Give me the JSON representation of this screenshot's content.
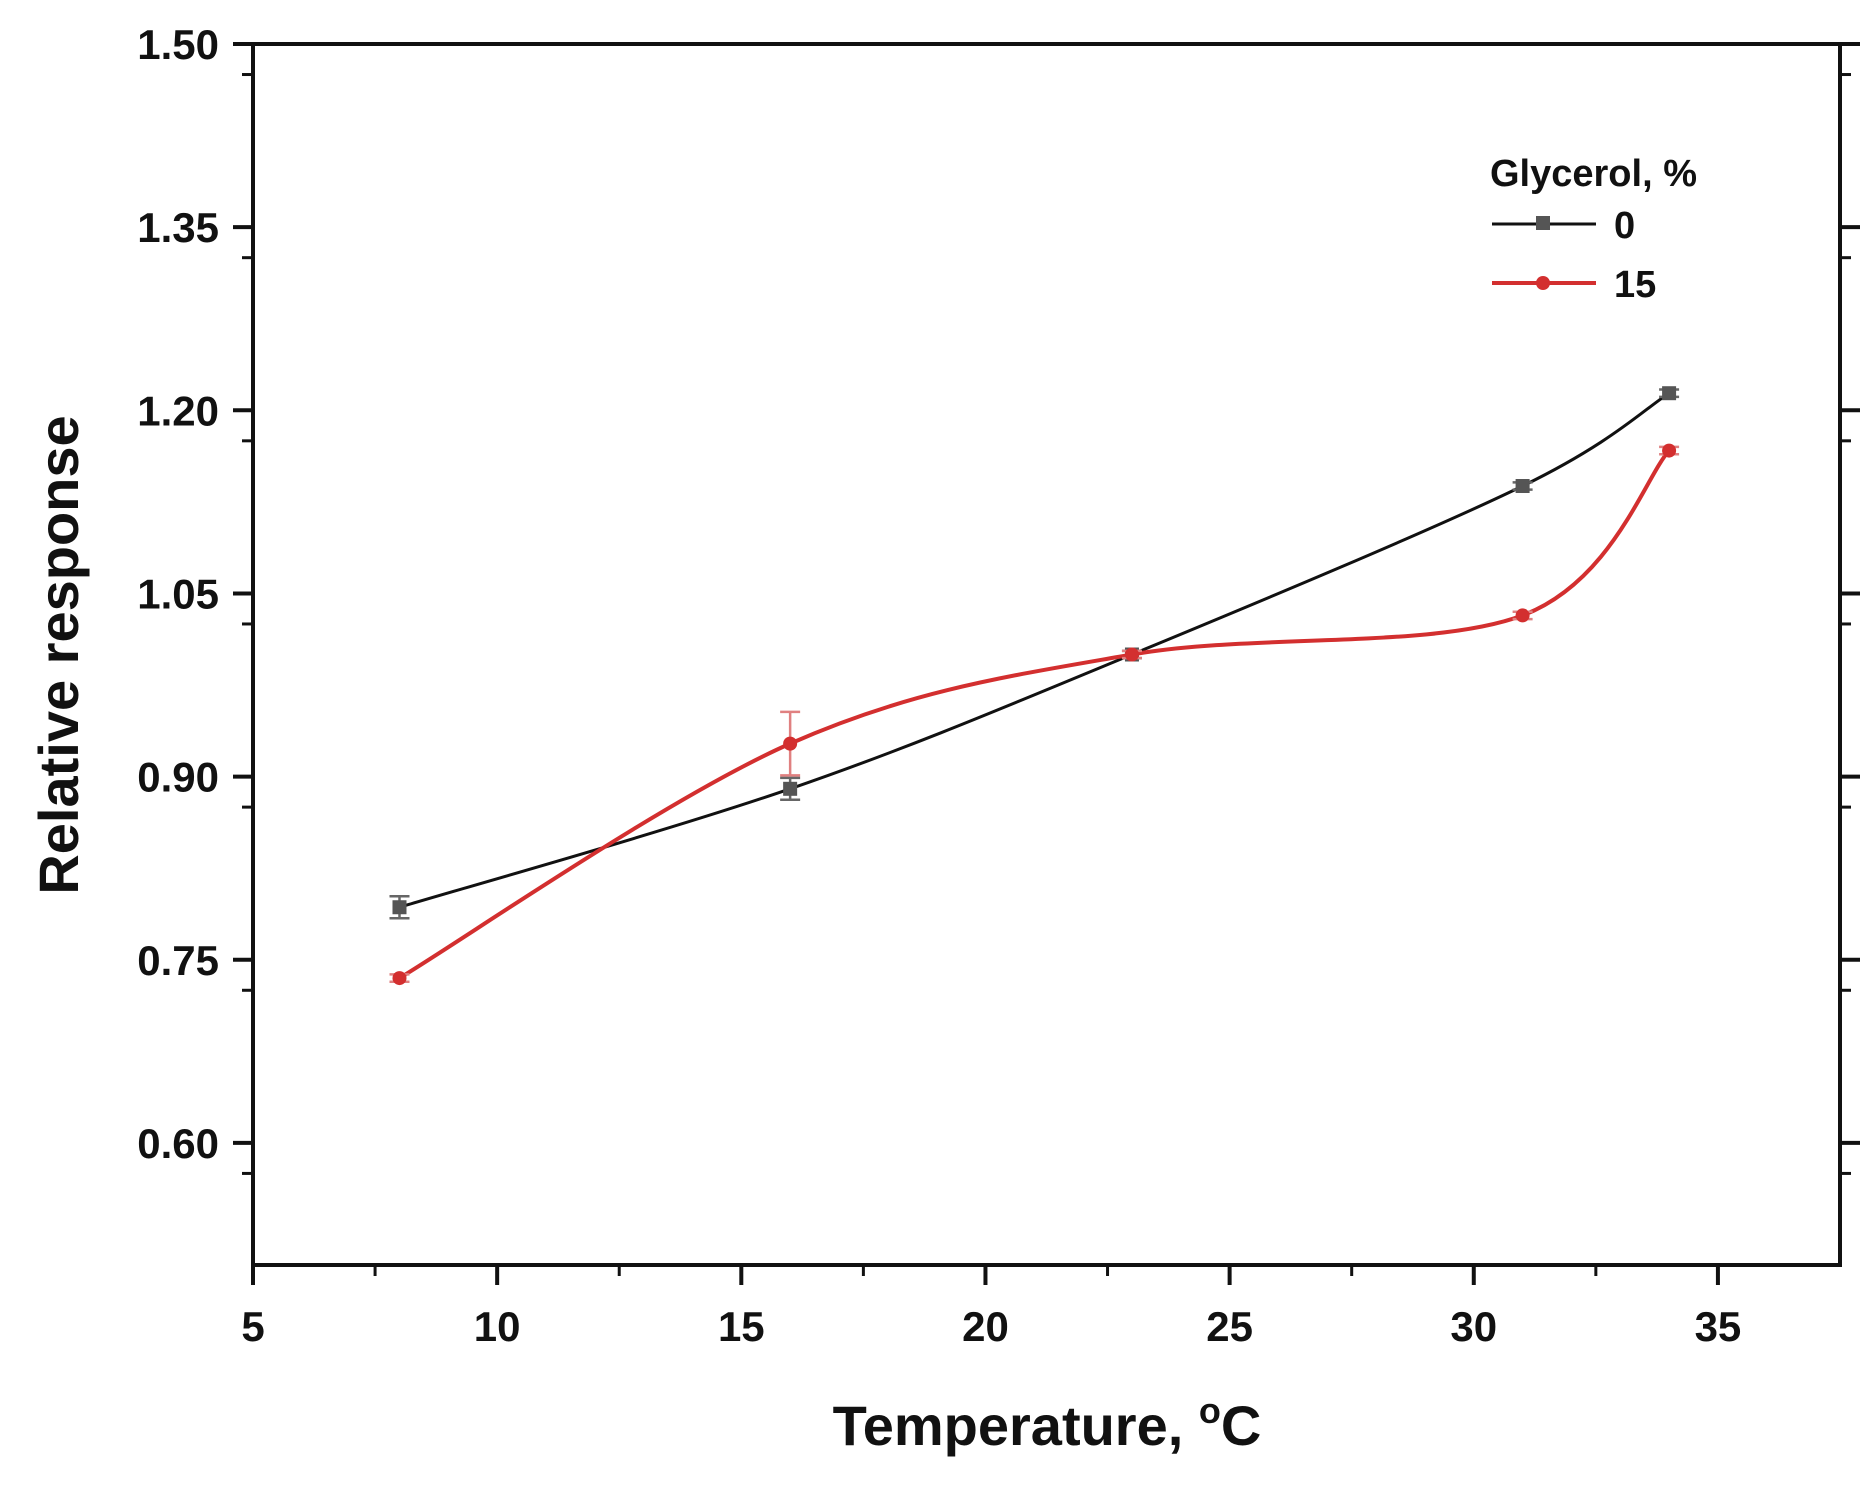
{
  "chart_data": {
    "type": "line",
    "title": "",
    "xlabel": "Temperature, ",
    "xlabel_unit_sup": "o",
    "xlabel_unit": "C",
    "ylabel": "Relative response",
    "xlim": [
      5,
      37.5
    ],
    "ylim": [
      0.5,
      1.5
    ],
    "xticks": [
      5,
      10,
      15,
      20,
      25,
      30,
      35
    ],
    "yticks": [
      0.6,
      0.75,
      0.9,
      1.05,
      1.2,
      1.35,
      1.5
    ],
    "ytick_labels": [
      "0.60",
      "0.75",
      "0.90",
      "1.05",
      "1.20",
      "1.35",
      "1.50"
    ],
    "xtick_labels": [
      "5",
      "10",
      "15",
      "20",
      "25",
      "30",
      "35"
    ],
    "legend": {
      "title": "Glycerol, %",
      "placement": "top-right"
    },
    "series": [
      {
        "name": "0",
        "color": "#111111",
        "marker": "square",
        "marker_color": "#555555",
        "x": [
          8,
          16,
          23,
          31,
          34
        ],
        "y": [
          0.793,
          0.89,
          1.0,
          1.138,
          1.214
        ],
        "err": [
          0.009,
          0.009,
          0.003,
          0.003,
          0.003
        ]
      },
      {
        "name": "15",
        "color": "#d32f2f",
        "marker": "circle",
        "marker_color": "#d32f2f",
        "x": [
          8,
          16,
          23,
          31,
          34
        ],
        "y": [
          0.735,
          0.927,
          1.0,
          1.032,
          1.167
        ],
        "err": [
          0.003,
          0.026,
          0.003,
          0.003,
          0.003
        ]
      }
    ]
  }
}
